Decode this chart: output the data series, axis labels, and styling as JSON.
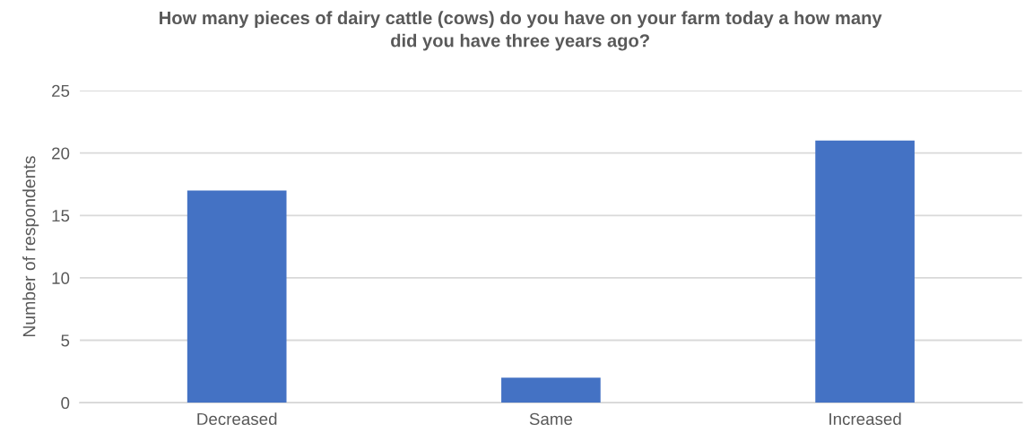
{
  "chart_data": {
    "type": "bar",
    "title": "How many pieces of dairy cattle (cows) do you have on your farm today a how many did you have three years ago?",
    "ylabel": "Number of respondents",
    "categories": [
      "Decreased",
      "Same",
      "Increased"
    ],
    "values": [
      17,
      2,
      21
    ],
    "color": "#4472c4",
    "ylim": [
      0,
      25
    ],
    "yticks": [
      0,
      5,
      10,
      15,
      20,
      25
    ],
    "grid": "y"
  }
}
